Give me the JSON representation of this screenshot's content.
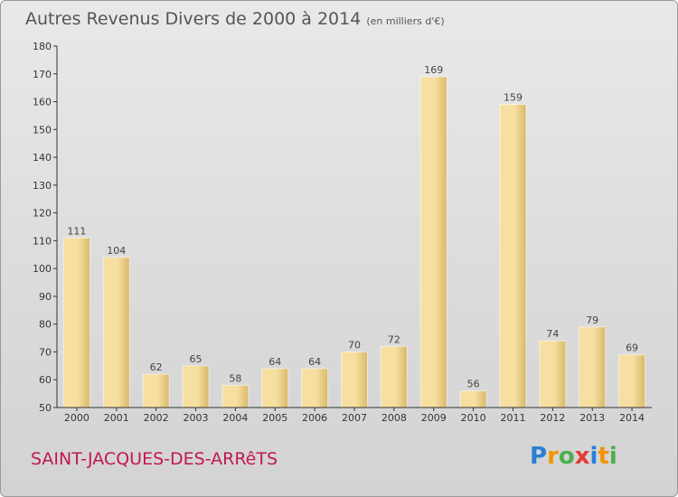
{
  "colors": {
    "bar_light": "#f6dfa0",
    "bar_dark": "#d9b96a",
    "title": "#555555",
    "commune": "#c2184f",
    "axis": "#333333"
  },
  "header": {
    "title": "Autres Revenus Divers de 2000 à 2014",
    "unit": "(en milliers d'€)"
  },
  "footer": {
    "commune": "SAINT-JACQUES-DES-ARRêTS",
    "logo": "Proxiti",
    "logo_letter_colors": [
      "#2a7fd4",
      "#f29400",
      "#4caf50",
      "#e53935",
      "#2a7fd4",
      "#f29400",
      "#4caf50"
    ]
  },
  "chart_data": {
    "type": "bar",
    "categories": [
      "2000",
      "2001",
      "2002",
      "2003",
      "2004",
      "2005",
      "2006",
      "2007",
      "2008",
      "2009",
      "2010",
      "2011",
      "2012",
      "2013",
      "2014"
    ],
    "values": [
      111,
      104,
      62,
      65,
      58,
      64,
      64,
      70,
      72,
      169,
      56,
      159,
      74,
      79,
      69
    ],
    "title": "Autres Revenus Divers de 2000 à 2014",
    "subtitle": "(en milliers d'€)",
    "xlabel": "",
    "ylabel": "",
    "ylim": [
      50,
      180
    ],
    "yticks": [
      50,
      60,
      70,
      80,
      90,
      100,
      110,
      120,
      130,
      140,
      150,
      160,
      170,
      180
    ],
    "grid": false,
    "data_labels": true
  }
}
